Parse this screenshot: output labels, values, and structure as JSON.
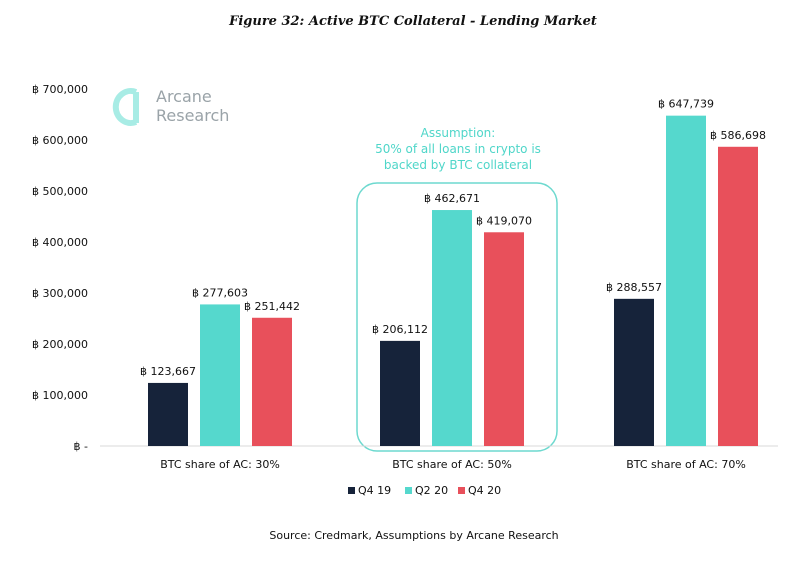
{
  "title": "Figure 32: Active BTC Collateral - Lending Market",
  "source": "Source: Credmark, Assumptions by Arcane Research",
  "logo": {
    "icon": "arcane-logo-icon",
    "line1": "Arcane",
    "line2": "Research"
  },
  "annotation": [
    "Assumption:",
    "50% of all loans in crypto is",
    "backed by BTC collateral"
  ],
  "colors": {
    "Q4 19": "#16233a",
    "Q2 20": "#55d8cd",
    "Q4 20": "#e8505b",
    "highlight": "#6dd9cf"
  },
  "chart_data": {
    "type": "bar",
    "title": "Figure 32: Active BTC Collateral - Lending Market",
    "xlabel": "",
    "ylabel": "",
    "ylim": [
      0,
      700000
    ],
    "y_ticks": [
      "฿ -",
      "฿ 100,000",
      "฿ 200,000",
      "฿ 300,000",
      "฿ 400,000",
      "฿ 500,000",
      "฿ 600,000",
      "฿ 700,000"
    ],
    "categories": [
      "BTC share of AC: 30%",
      "BTC share of AC: 50%",
      "BTC share of AC: 70%"
    ],
    "series": [
      {
        "name": "Q4 19",
        "values": [
          123667,
          206112,
          288557
        ],
        "labels": [
          "฿ 123,667",
          "฿ 206,112",
          "฿ 288,557"
        ]
      },
      {
        "name": "Q2 20",
        "values": [
          277603,
          462671,
          647739
        ],
        "labels": [
          "฿ 277,603",
          "฿ 462,671",
          "฿ 647,739"
        ]
      },
      {
        "name": "Q4 20",
        "values": [
          251442,
          419070,
          586698
        ],
        "labels": [
          "฿ 251,442",
          "฿ 419,070",
          "฿ 586,698"
        ]
      }
    ],
    "grid": false,
    "legend": "bottom",
    "highlighted_category": "BTC share of AC: 50%"
  }
}
